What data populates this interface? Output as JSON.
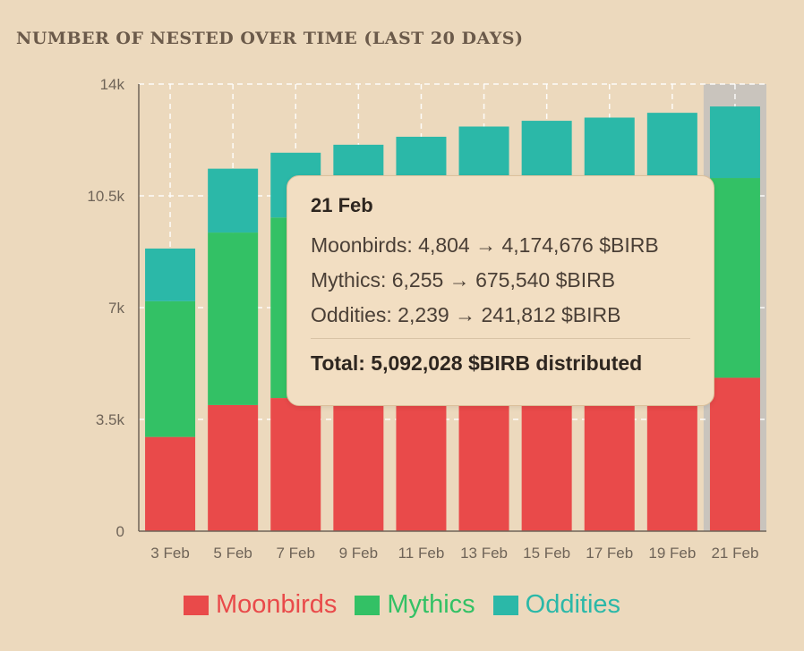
{
  "chart_data": {
    "type": "bar",
    "stacked": true,
    "title": "NUMBER OF NESTED OVER TIME (LAST 20 DAYS)",
    "categories": [
      "3 Feb",
      "5 Feb",
      "7 Feb",
      "9 Feb",
      "11 Feb",
      "13 Feb",
      "15 Feb",
      "17 Feb",
      "19 Feb",
      "21 Feb"
    ],
    "series": [
      {
        "name": "Moonbirds",
        "color": "#e94a4a",
        "values": [
          2950,
          3950,
          4170,
          4300,
          4400,
          4520,
          4600,
          4650,
          4720,
          4804
        ]
      },
      {
        "name": "Mythics",
        "color": "#33c165",
        "values": [
          4250,
          5400,
          5650,
          5850,
          5900,
          6000,
          6050,
          6100,
          6130,
          6255
        ]
      },
      {
        "name": "Oddities",
        "color": "#2bb8a8",
        "values": [
          1650,
          2000,
          2030,
          1950,
          2050,
          2150,
          2200,
          2200,
          2250,
          2239
        ]
      }
    ],
    "yticks": [
      "0",
      "3.5k",
      "7k",
      "10.5k",
      "14k"
    ],
    "ytick_values": [
      0,
      3500,
      7000,
      10500,
      14000
    ],
    "ylim": [
      0,
      14000
    ],
    "xlabel": "",
    "ylabel": "",
    "highlight_index": 9,
    "legend_position": "bottom-center"
  },
  "tooltip": {
    "date": "21 Feb",
    "lines": [
      "Moonbirds: 4,804 → 4,174,676 $BIRB",
      "Mythics: 6,255 → 675,540 $BIRB",
      "Oddities: 2,239 → 241,812 $BIRB"
    ],
    "total": "Total: 5,092,028 $BIRB distributed"
  }
}
